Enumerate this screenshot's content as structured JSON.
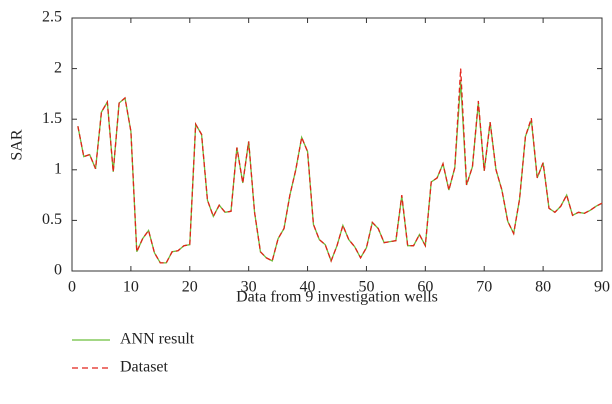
{
  "chart_data": {
    "type": "line",
    "x_label": "Data from 9 investigation wells",
    "y_label": "SAR",
    "x": [
      1,
      2,
      3,
      4,
      5,
      6,
      7,
      8,
      9,
      10,
      11,
      12,
      13,
      14,
      15,
      16,
      17,
      18,
      19,
      20,
      21,
      22,
      23,
      24,
      25,
      26,
      27,
      28,
      29,
      30,
      31,
      32,
      33,
      34,
      35,
      36,
      37,
      38,
      39,
      40,
      41,
      42,
      43,
      44,
      45,
      46,
      47,
      48,
      49,
      50,
      51,
      52,
      53,
      54,
      55,
      56,
      57,
      58,
      59,
      60,
      61,
      62,
      63,
      64,
      65,
      66,
      67,
      68,
      69,
      70,
      71,
      72,
      73,
      74,
      75,
      76,
      77,
      78,
      79,
      80,
      81,
      82,
      83,
      84,
      85,
      86,
      87,
      88,
      89,
      90
    ],
    "series": [
      {
        "name": "ANN result",
        "color": "#6cbf3c",
        "linestyle": "solid",
        "values": [
          1.43,
          1.13,
          1.15,
          1.01,
          1.57,
          1.67,
          0.98,
          1.66,
          1.71,
          1.38,
          0.19,
          0.32,
          0.4,
          0.18,
          0.08,
          0.08,
          0.19,
          0.2,
          0.25,
          0.26,
          1.45,
          1.35,
          0.7,
          0.54,
          0.65,
          0.58,
          0.59,
          1.22,
          0.87,
          1.28,
          0.58,
          0.19,
          0.13,
          0.1,
          0.32,
          0.42,
          0.75,
          1.0,
          1.32,
          1.18,
          0.46,
          0.31,
          0.26,
          0.1,
          0.25,
          0.45,
          0.31,
          0.24,
          0.13,
          0.23,
          0.48,
          0.42,
          0.28,
          0.29,
          0.3,
          0.74,
          0.25,
          0.25,
          0.36,
          0.25,
          0.88,
          0.92,
          1.06,
          0.8,
          1.02,
          1.87,
          0.85,
          1.03,
          1.66,
          0.99,
          1.47,
          1.0,
          0.8,
          0.49,
          0.37,
          0.71,
          1.33,
          1.49,
          0.92,
          1.07,
          0.62,
          0.58,
          0.64,
          0.75,
          0.55,
          0.58,
          0.57,
          0.6,
          0.64,
          0.67
        ]
      },
      {
        "name": "Dataset",
        "color": "#e2231a",
        "linestyle": "dashed",
        "values": [
          1.43,
          1.13,
          1.15,
          1.01,
          1.57,
          1.67,
          0.98,
          1.66,
          1.71,
          1.38,
          0.19,
          0.32,
          0.4,
          0.18,
          0.08,
          0.08,
          0.19,
          0.2,
          0.25,
          0.26,
          1.45,
          1.35,
          0.7,
          0.54,
          0.65,
          0.58,
          0.59,
          1.22,
          0.87,
          1.28,
          0.58,
          0.19,
          0.13,
          0.1,
          0.32,
          0.42,
          0.75,
          1.0,
          1.32,
          1.18,
          0.46,
          0.31,
          0.26,
          0.1,
          0.25,
          0.45,
          0.31,
          0.24,
          0.13,
          0.23,
          0.48,
          0.42,
          0.28,
          0.29,
          0.3,
          0.75,
          0.25,
          0.25,
          0.36,
          0.25,
          0.88,
          0.92,
          1.06,
          0.8,
          1.02,
          2.0,
          0.85,
          1.03,
          1.68,
          0.99,
          1.47,
          1.0,
          0.8,
          0.49,
          0.37,
          0.71,
          1.33,
          1.51,
          0.92,
          1.07,
          0.62,
          0.58,
          0.64,
          0.75,
          0.55,
          0.58,
          0.57,
          0.6,
          0.64,
          0.67
        ]
      }
    ],
    "xlim": [
      0,
      90
    ],
    "xticks": [
      0,
      10,
      20,
      30,
      40,
      50,
      60,
      70,
      80,
      90
    ],
    "ylim": [
      0,
      2.5
    ],
    "yticks": [
      0,
      0.5,
      1,
      1.5,
      2,
      2.5
    ],
    "legend": "below"
  }
}
